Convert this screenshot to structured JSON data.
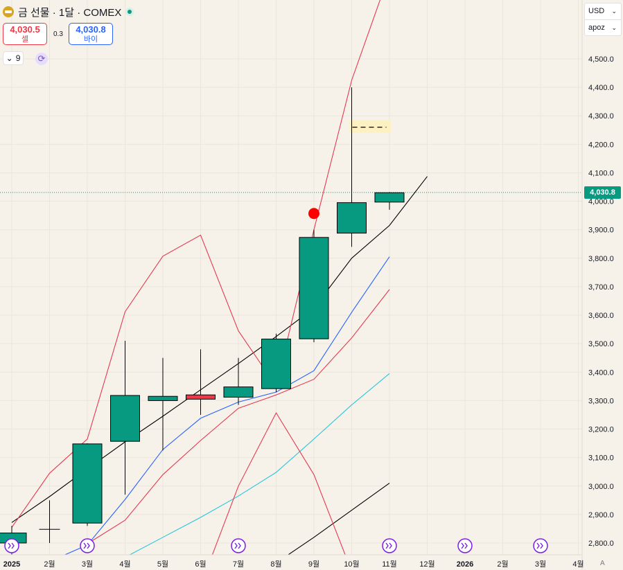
{
  "header": {
    "title": "금 선물 · 1달 · COMEX"
  },
  "trade": {
    "sell_price": "4,030.5",
    "sell_label": "셀",
    "spread": "0.3",
    "buy_price": "4,030.8",
    "buy_label": "바이"
  },
  "indicators": {
    "count": "9"
  },
  "currency": {
    "selected": "USD",
    "unit": "apoz"
  },
  "last_price_label": "4,030.8",
  "auto_label": "A",
  "chart_data": {
    "type": "candlestick",
    "x_labels": [
      "2025",
      "2월",
      "3월",
      "4월",
      "5월",
      "6월",
      "7월",
      "8월",
      "9월",
      "10월",
      "11월",
      "12월",
      "2026",
      "2월",
      "3월",
      "4월"
    ],
    "y_ticks": [
      "4,500.0",
      "4,400.0",
      "4,300.0",
      "4,200.0",
      "4,100.0",
      "4,000.0",
      "3,900.0",
      "3,800.0",
      "3,700.0",
      "3,600.0",
      "3,500.0",
      "3,400.0",
      "3,300.0",
      "3,200.0",
      "3,100.0",
      "3,000.0",
      "2,900.0",
      "2,800.0"
    ],
    "y_values": [
      4500,
      4400,
      4300,
      4200,
      4100,
      4000,
      3900,
      3800,
      3700,
      3600,
      3500,
      3400,
      3300,
      3200,
      3100,
      3000,
      2900,
      2800
    ],
    "ylim": [
      2800,
      4500
    ],
    "last_price": 4030.8,
    "candles": [
      {
        "month": "2025-01",
        "open": 2800,
        "high": 2860,
        "low": 2760,
        "close": 2835
      },
      {
        "month": "2025-02",
        "open": 2848,
        "high": 2950,
        "low": 2800,
        "close": 2848
      },
      {
        "month": "2025-03",
        "open": 2870,
        "high": 3150,
        "low": 2860,
        "close": 3148
      },
      {
        "month": "2025-04",
        "open": 3157,
        "high": 3510,
        "low": 2970,
        "close": 3318
      },
      {
        "month": "2025-05",
        "open": 3300,
        "high": 3450,
        "low": 3125,
        "close": 3315
      },
      {
        "month": "2025-06",
        "open": 3320,
        "high": 3480,
        "low": 3250,
        "close": 3305
      },
      {
        "month": "2025-07",
        "open": 3312,
        "high": 3450,
        "low": 3285,
        "close": 3348
      },
      {
        "month": "2025-08",
        "open": 3342,
        "high": 3535,
        "low": 3330,
        "close": 3516
      },
      {
        "month": "2025-09",
        "open": 3517,
        "high": 3900,
        "low": 3505,
        "close": 3873
      },
      {
        "month": "2025-10",
        "open": 3888,
        "high": 4400,
        "low": 3840,
        "close": 3995
      },
      {
        "month": "2025-11",
        "open": 3997,
        "high": 4032,
        "low": 3970,
        "close": 4030
      }
    ],
    "overlays": [
      {
        "color": "#000000",
        "values": [
          2872,
          2963,
          3060,
          3155,
          3245,
          3338,
          3430,
          3525,
          3625,
          3800,
          3915,
          4087
        ]
      },
      {
        "color": "#000000",
        "values": [
          null,
          null,
          null,
          null,
          null,
          null,
          null,
          2730,
          2820,
          2915,
          3010
        ]
      },
      {
        "color": "#2962ff",
        "values": [
          null,
          2735,
          2793,
          2953,
          3128,
          3238,
          3295,
          3330,
          3405,
          3610,
          3805
        ]
      },
      {
        "color": "#26c6da",
        "values": [
          null,
          null,
          null,
          2750,
          2820,
          2890,
          2965,
          3048,
          3165,
          3285,
          3395
        ]
      },
      {
        "color": "#e53950",
        "values": [
          2855,
          3045,
          3165,
          3612,
          3807,
          3881,
          3545,
          3350,
          3900,
          4425,
          4800
        ]
      },
      {
        "color": "#e53950",
        "values": [
          null,
          null,
          2797,
          2880,
          3040,
          3160,
          3273,
          3320,
          3375,
          3520,
          3690
        ]
      },
      {
        "color": "#e53950",
        "values": [
          null,
          null,
          null,
          null,
          null,
          2650,
          3000,
          3257,
          3040,
          2700,
          null
        ]
      }
    ],
    "markers": [
      {
        "type": "dot",
        "color": "#ff0000",
        "month": "2025-09",
        "value": 3957
      }
    ],
    "target_band": {
      "month": "2025-10",
      "low": 4240,
      "high": 4285,
      "line_value": 4260
    },
    "events_at": [
      "2025",
      "3월",
      "7월",
      "11월",
      "2026",
      "3월"
    ]
  }
}
